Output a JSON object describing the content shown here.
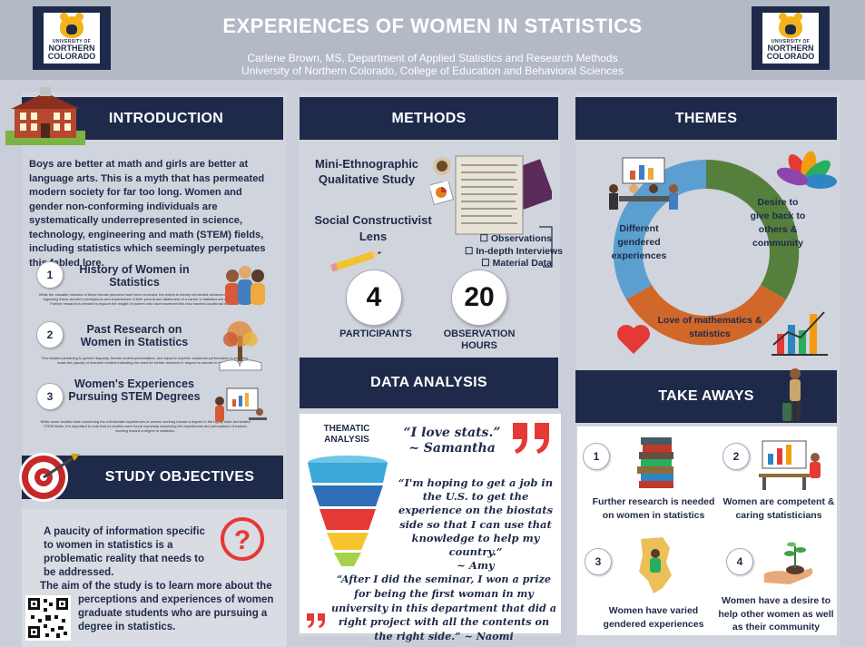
{
  "header": {
    "title": "EXPERIENCES OF WOMEN IN STATISTICS",
    "author_line": "Carlene Brown, MS, Department of Applied Statistics and Research Methods",
    "institution_line": "University of Northern Colorado, College of Education and Behavioral Sciences",
    "logo_small": "UNIVERSITY OF",
    "logo_line1": "NORTHERN",
    "logo_line2": "COLORADO"
  },
  "colors": {
    "navy": "#1f2a4a",
    "green": "#557f3c",
    "orange": "#d1682a",
    "blue": "#5a9fcf",
    "gold": "#f2b31c"
  },
  "introduction": {
    "heading": "INTRODUCTION",
    "paragraph": "Boys are better at math and girls are better at language arts. This is a myth that has permeated modern society for far too long. Women and gender non-conforming individuals are systematically underrepresented in science, technology, engineering and math (STEM) fields, including statistics which seemingly perpetuates this fabled lore.",
    "items": [
      {
        "num": "1",
        "title": "History of Women in Statistics",
        "text": "While the valuable histories of these female pioneers have been recorded, the extent is merely chronicled achievements. Information regarding these women's perceptions and experiences of their pursuit and attainment of a career in statistics are scant or been. Further research is needed to explore the insight of women who have traversed this less traveled vocational endeavor."
      },
      {
        "num": "2",
        "title": "Past Research on Women in Statistics",
        "text": "Few studies pertaining to gender disparity, female underrepresentation, and equal to superior academic performance in statistics, make the paucity of research evident indicating the need for further research in respect to women in statistics."
      },
      {
        "num": "3",
        "title": "Women's Experiences Pursuing STEM Degrees",
        "text": "While some studies exist concerning the unfortunate experiences of women working toward a degree in the highly male-dominated STEM fields, it is important to note that no studies were found expressly examining the experiences and perceptions of women working toward a degree in statistics."
      }
    ]
  },
  "objectives": {
    "heading": "STUDY OBJECTIVES",
    "p1": "A paucity of information specific to women in statistics is a problematic reality that needs to be addressed.",
    "p2a": "The aim of the study is to learn more about the",
    "p2b": "perceptions and experiences of women graduate students who are pursuing a degree in statistics."
  },
  "methods": {
    "heading": "METHODS",
    "study_type": "Mini-Ethnographic Qualitative Study",
    "lens": "Social Constructivist Lens",
    "data_sources": [
      "Observations",
      "In-depth Interviews",
      "Material Data"
    ],
    "participants_value": "4",
    "participants_label": "PARTICIPANTS",
    "hours_value": "20",
    "hours_label": "OBSERVATION HOURS"
  },
  "analysis": {
    "heading": "DATA ANALYSIS",
    "label": "THEMATIC ANALYSIS",
    "quote1": "“I love stats.”",
    "quote1_author": "~ Samantha",
    "quote2": "“I'm hoping to get a job in the U.S. to get the experience on the biostats side so that I can use that knowledge to help my country.”",
    "quote2_author": "~ Amy",
    "quote3": "“After I did the seminar, I won a prize for being the first woman in my university in this department that did a right project with all the contents on the right side.” ~ Naomi"
  },
  "themes": {
    "heading": "THEMES",
    "segments": [
      {
        "label": "Different gendered experiences",
        "color": "#5a9fcf"
      },
      {
        "label": "Desire to give back to others & community",
        "color": "#557f3c"
      },
      {
        "label": "Love of mathematics & statistics",
        "color": "#d1682a"
      }
    ]
  },
  "takeaways": {
    "heading": "TAKE AWAYS",
    "items": [
      {
        "num": "1",
        "text": "Further research is needed on women in statistics"
      },
      {
        "num": "2",
        "text": "Women are competent & caring statisticians"
      },
      {
        "num": "3",
        "text": "Women have varied gendered experiences"
      },
      {
        "num": "4",
        "text": "Women have a desire to help other women as well as their community"
      }
    ]
  }
}
